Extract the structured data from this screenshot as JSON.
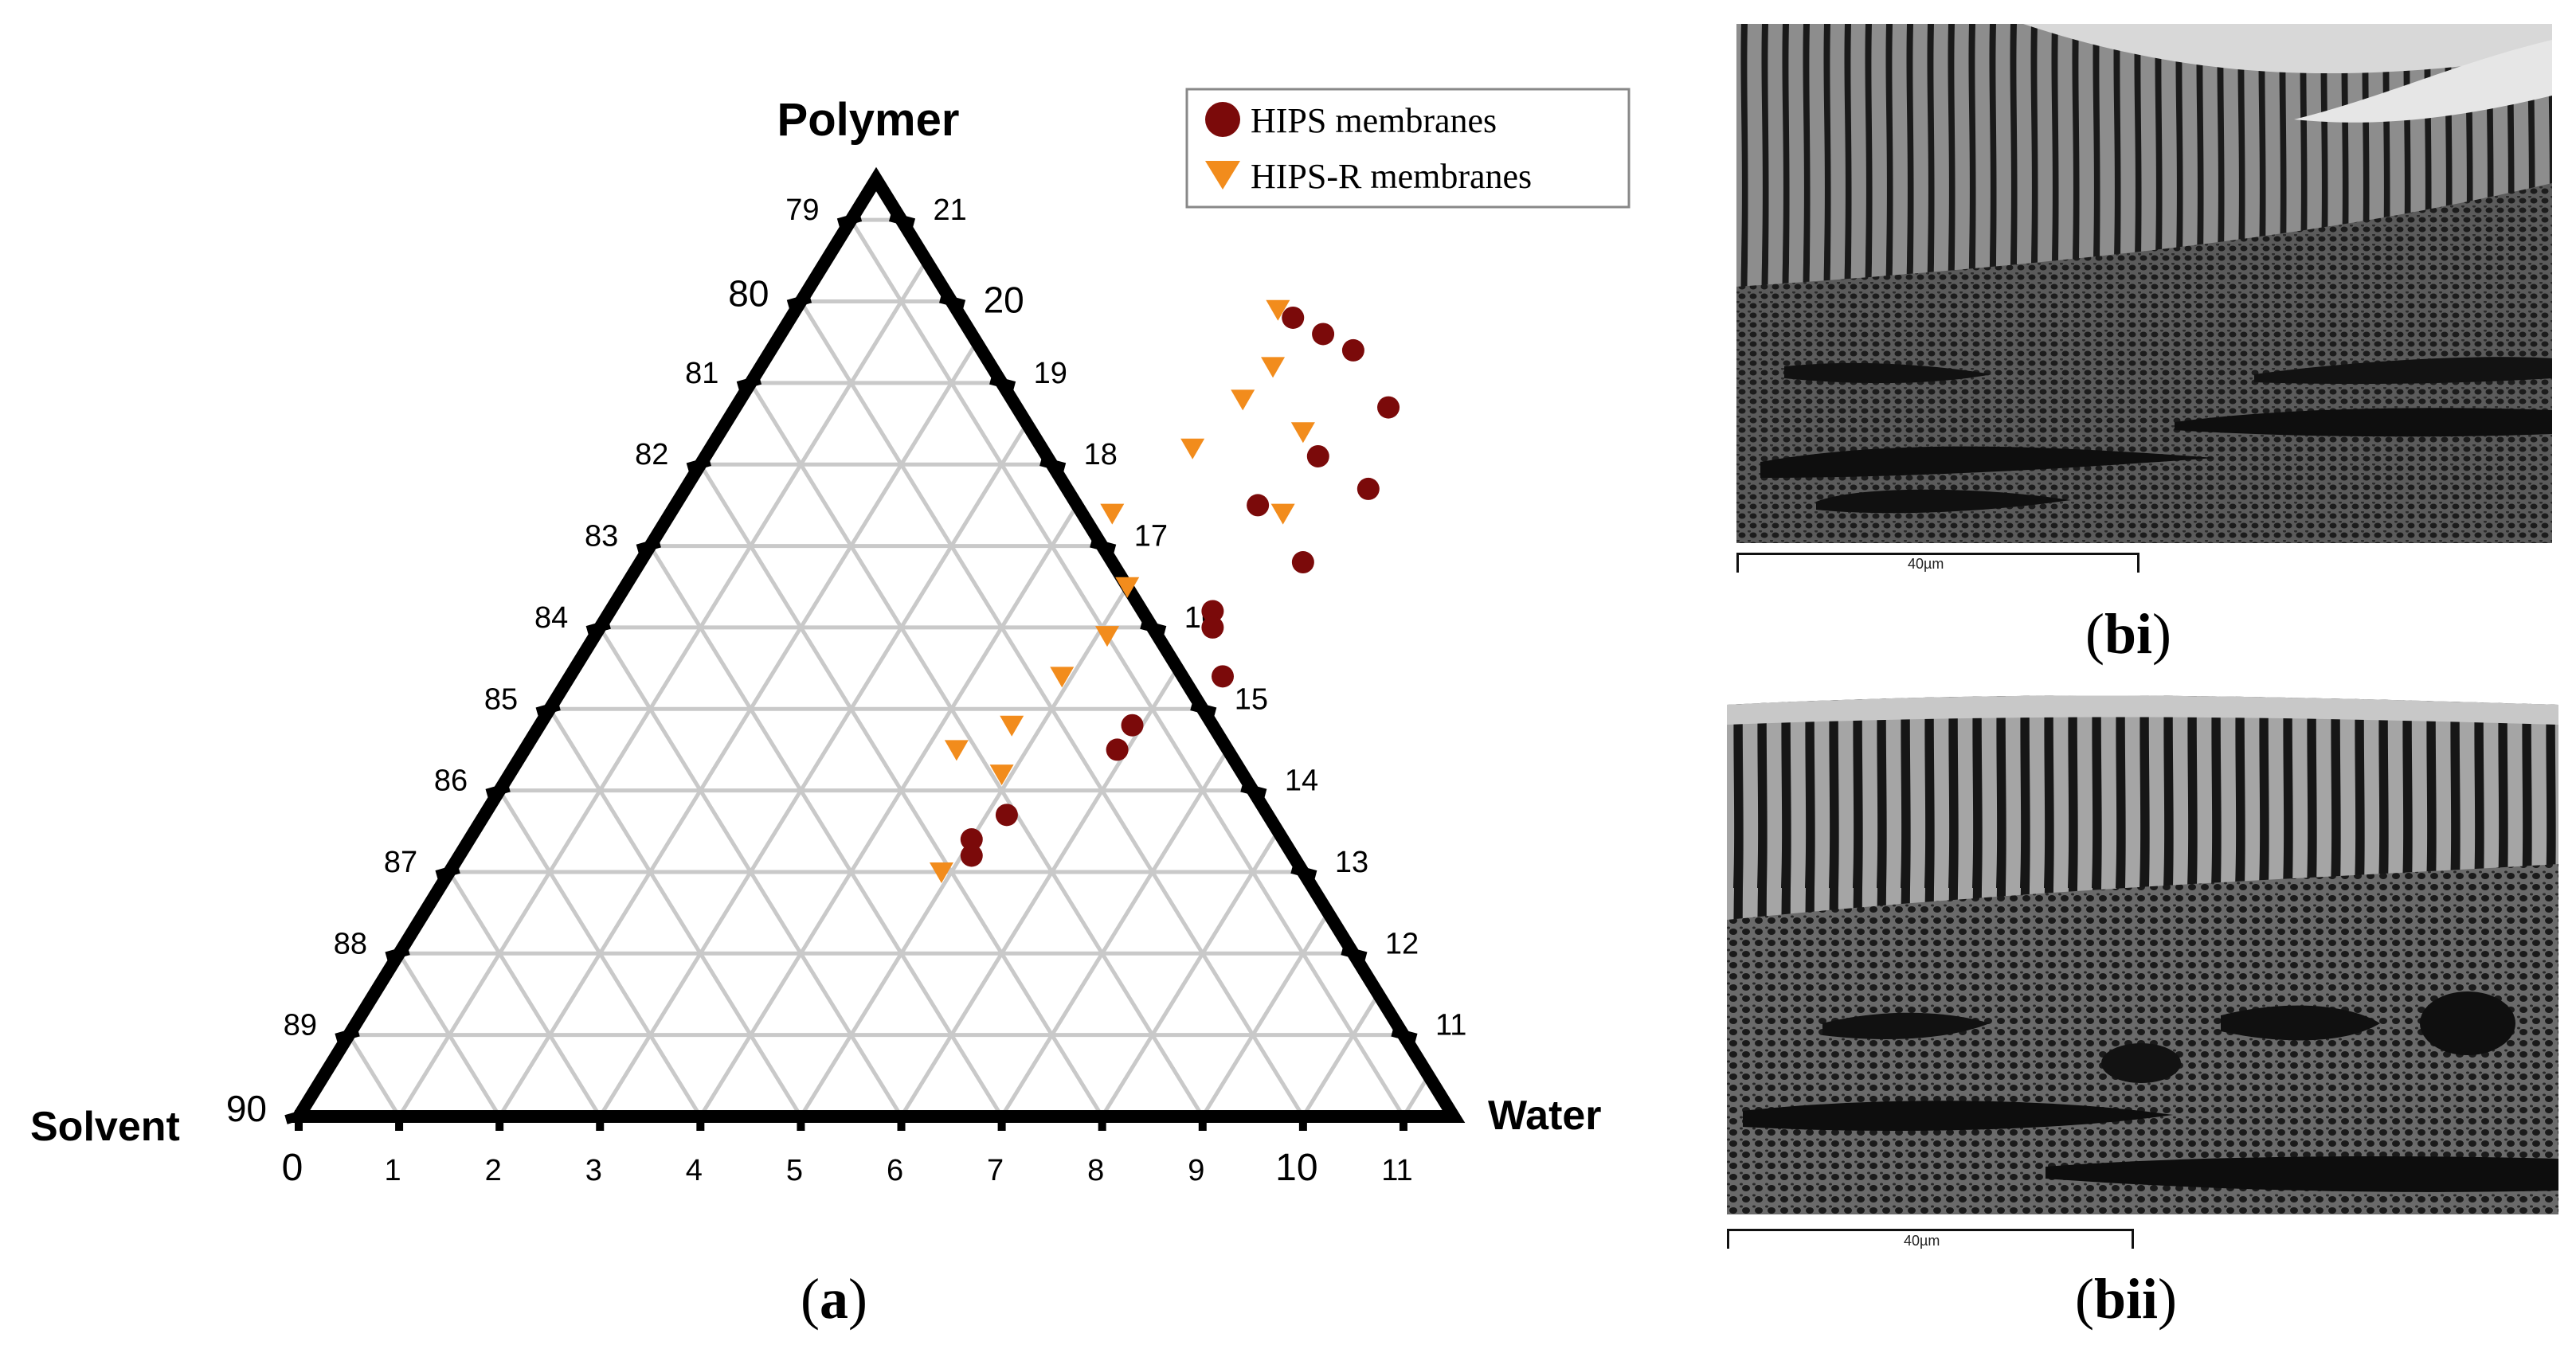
{
  "panels": {
    "a": {
      "label": "a"
    },
    "bi": {
      "label": "bi",
      "scale_label": "40µm"
    },
    "bii": {
      "label": "bii",
      "scale_label": "40µm"
    }
  },
  "chart_data": {
    "type": "scatter",
    "subtype": "ternary",
    "vertex_labels": {
      "top": "Polymer",
      "left": "Solvent",
      "right": "Water"
    },
    "bottom_ticks": [
      "0",
      "1",
      "2",
      "3",
      "4",
      "5",
      "6",
      "7",
      "8",
      "9",
      "10",
      "11"
    ],
    "left_ticks": [
      "90",
      "89",
      "88",
      "87",
      "86",
      "85",
      "84",
      "83",
      "82",
      "81",
      "80",
      "79"
    ],
    "right_ticks": [
      "11",
      "12",
      "13",
      "14",
      "15",
      "16",
      "17",
      "18",
      "19",
      "20",
      "21"
    ],
    "bottom_range": [
      0,
      11.5
    ],
    "left_range": [
      78.5,
      90
    ],
    "grid": true,
    "legend_position": "top-right",
    "colors": {
      "hips": "#7b0a0a",
      "hips_r": "#f28c1c",
      "grid": "#c9c9c9",
      "axis": "#000000"
    },
    "series": [
      {
        "name": "HIPS membranes",
        "marker": "circle",
        "points": [
          {
            "water": 5.0,
            "solvent": 80.2
          },
          {
            "water": 5.4,
            "solvent": 80.4
          },
          {
            "water": 5.8,
            "solvent": 80.6
          },
          {
            "water": 6.5,
            "solvent": 81.3
          },
          {
            "water": 6.1,
            "solvent": 81.9
          },
          {
            "water": 6.8,
            "solvent": 82.3
          },
          {
            "water": 5.8,
            "solvent": 82.5
          },
          {
            "water": 6.6,
            "solvent": 83.2
          },
          {
            "water": 6.0,
            "solvent": 83.8
          },
          {
            "water": 6.1,
            "solvent": 84.0
          },
          {
            "water": 6.5,
            "solvent": 84.6
          },
          {
            "water": 5.9,
            "solvent": 85.2
          },
          {
            "water": 5.9,
            "solvent": 85.5
          },
          {
            "water": 5.2,
            "solvent": 86.3
          },
          {
            "water": 5.0,
            "solvent": 86.6
          },
          {
            "water": 5.1,
            "solvent": 86.8
          }
        ]
      },
      {
        "name": "HIPS-R membranes",
        "marker": "triangle-down",
        "points": [
          {
            "water": 4.8,
            "solvent": 80.1
          },
          {
            "water": 5.1,
            "solvent": 80.8
          },
          {
            "water": 5.0,
            "solvent": 81.2
          },
          {
            "water": 5.8,
            "solvent": 81.6
          },
          {
            "water": 4.8,
            "solvent": 81.8
          },
          {
            "water": 6.1,
            "solvent": 82.6
          },
          {
            "water": 4.4,
            "solvent": 82.6
          },
          {
            "water": 5.0,
            "solvent": 83.5
          },
          {
            "water": 5.1,
            "solvent": 84.1
          },
          {
            "water": 4.9,
            "solvent": 84.6
          },
          {
            "water": 4.7,
            "solvent": 85.2
          },
          {
            "water": 4.3,
            "solvent": 85.5
          },
          {
            "water": 4.9,
            "solvent": 85.8
          },
          {
            "water": 4.9,
            "solvent": 87.0
          }
        ]
      }
    ]
  }
}
